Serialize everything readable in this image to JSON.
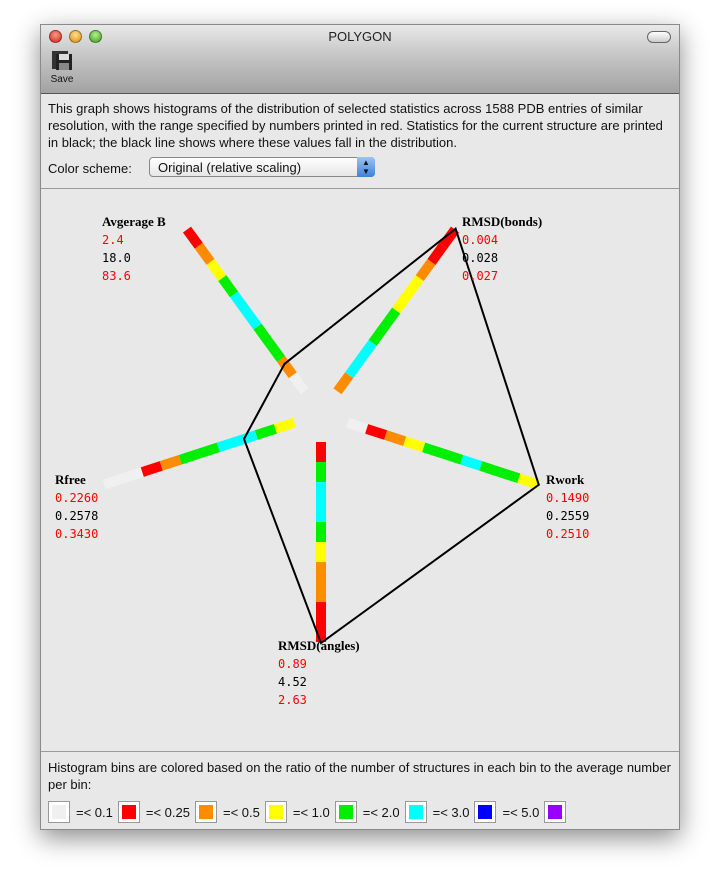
{
  "window": {
    "title": "POLYGON"
  },
  "toolbar": {
    "save_label": "Save"
  },
  "description": "This graph shows histograms of the distribution of selected statistics across 1588 PDB entries of similar resolution, with the range specified by numbers printed in red.  Statistics for the current structure are printed in black; the black line shows where these values fall in the distribution.",
  "color_scheme": {
    "label": "Color scheme:",
    "selected": "Original (relative scaling)"
  },
  "chart_data": {
    "type": "radar-histogram",
    "colors": {
      "white": "#f0f0f0",
      "red": "#ff0000",
      "orange": "#ff8c00",
      "yellow": "#ffff00",
      "green": "#00ee00",
      "cyan": "#00ffff",
      "blue": "#0000ff",
      "purple": "#9900ff"
    },
    "axes": [
      {
        "name": "Avgerage B",
        "min": "2.4",
        "current": "18.0",
        "max": "83.6",
        "marker_fraction": 0.165,
        "bins": [
          "white",
          "orange",
          "green",
          "green",
          "cyan",
          "cyan",
          "green",
          "yellow",
          "orange",
          "red"
        ]
      },
      {
        "name": "RMSD(bonds)",
        "min": "0.004",
        "current": "0.028",
        "max": "0.027",
        "marker_fraction": 1.0,
        "bins": [
          "orange",
          "cyan",
          "cyan",
          "green",
          "green",
          "yellow",
          "yellow",
          "orange",
          "red",
          "red"
        ]
      },
      {
        "name": "Rwork",
        "min": "0.1490",
        "current": "0.2559",
        "max": "0.2510",
        "marker_fraction": 1.0,
        "bins": [
          "white",
          "red",
          "orange",
          "yellow",
          "green",
          "green",
          "cyan",
          "green",
          "green",
          "yellow"
        ]
      },
      {
        "name": "RMSD(angles)",
        "min": "0.89",
        "current": "4.52",
        "max": "2.63",
        "marker_fraction": 1.0,
        "bins": [
          "red",
          "green",
          "cyan",
          "cyan",
          "green",
          "yellow",
          "orange",
          "orange",
          "red",
          "red"
        ]
      },
      {
        "name": "Rfree",
        "min": "0.2260",
        "current": "0.2578",
        "max": "0.3430",
        "marker_fraction": 0.26,
        "bins": [
          "yellow",
          "green",
          "cyan",
          "cyan",
          "green",
          "green",
          "orange",
          "red",
          "white",
          "white"
        ]
      }
    ]
  },
  "legend": {
    "text": "Histogram bins are colored based on the ratio of the number of structures in each bin to the average number per bin:",
    "items": [
      {
        "color": "#f0f0f0",
        "label": "=< 0.1"
      },
      {
        "color": "#ff0000",
        "label": "=< 0.25"
      },
      {
        "color": "#ff8c00",
        "label": "=< 0.5"
      },
      {
        "color": "#ffff00",
        "label": "=< 1.0"
      },
      {
        "color": "#00ee00",
        "label": "=< 2.0"
      },
      {
        "color": "#00ffff",
        "label": "=< 3.0"
      },
      {
        "color": "#0000ff",
        "label": "=< 5.0"
      },
      {
        "color": "#9900ff",
        "label": ""
      }
    ]
  }
}
